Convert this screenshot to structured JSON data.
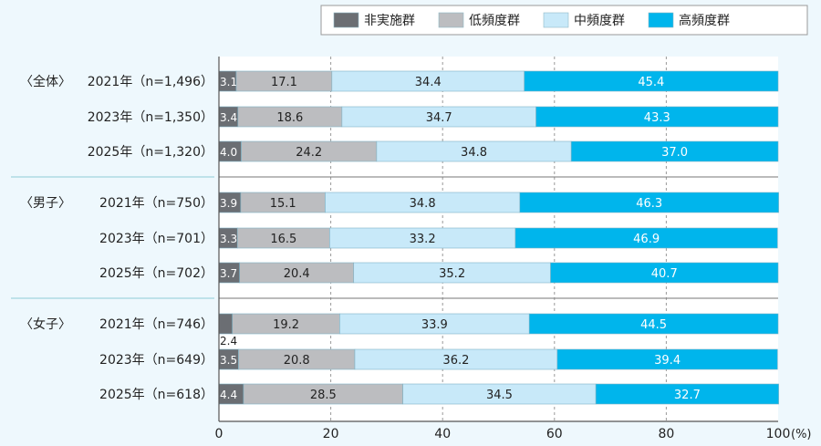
{
  "chart_data": {
    "type": "bar",
    "orientation": "horizontal",
    "stacked": true,
    "xlim": [
      0,
      100
    ],
    "x_ticks": [
      "0",
      "20",
      "40",
      "60",
      "80",
      "100"
    ],
    "x_unit": "(%)",
    "grid": "dashed vertical",
    "legend_placement": "top-right",
    "series": [
      {
        "name": "非実施群",
        "color": "#6b6e73"
      },
      {
        "name": "低頻度群",
        "color": "#bcbdc0"
      },
      {
        "name": "中頻度群",
        "color": "#c8e9f9"
      },
      {
        "name": "高頻度群",
        "color": "#00b5ec"
      }
    ],
    "groups": [
      {
        "label": "〈全体〉",
        "rows": [
          {
            "label": "2021年（n=1,496）",
            "values": [
              3.1,
              17.1,
              34.4,
              45.4
            ]
          },
          {
            "label": "2023年（n=1,350）",
            "values": [
              3.4,
              18.6,
              34.7,
              43.3
            ]
          },
          {
            "label": "2025年（n=1,320）",
            "values": [
              4.0,
              24.2,
              34.8,
              37.0
            ]
          }
        ]
      },
      {
        "label": "〈男子〉",
        "rows": [
          {
            "label": "2021年（n=750）",
            "values": [
              3.9,
              15.1,
              34.8,
              46.3
            ]
          },
          {
            "label": "2023年（n=701）",
            "values": [
              3.3,
              16.5,
              33.2,
              46.9
            ]
          },
          {
            "label": "2025年（n=702）",
            "values": [
              3.7,
              20.4,
              35.2,
              40.7
            ]
          }
        ]
      },
      {
        "label": "〈女子〉",
        "rows": [
          {
            "label": "2021年（n=746）",
            "values": [
              2.4,
              19.2,
              33.9,
              44.5
            ]
          },
          {
            "label": "2023年（n=649）",
            "values": [
              3.5,
              20.8,
              36.2,
              39.4
            ]
          },
          {
            "label": "2025年（n=618）",
            "values": [
              4.4,
              28.5,
              34.5,
              32.7
            ]
          }
        ]
      }
    ]
  }
}
